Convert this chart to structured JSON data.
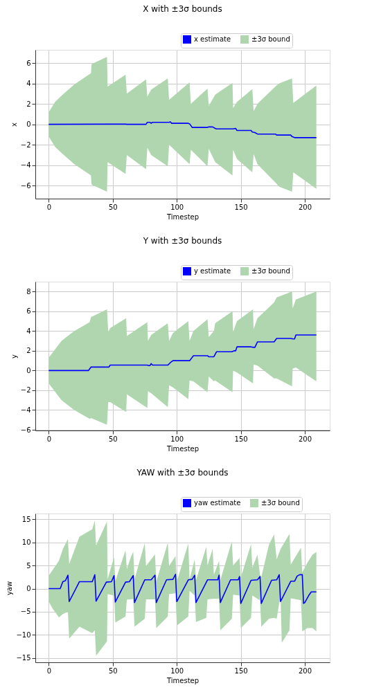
{
  "chart_data": [
    {
      "type": "line",
      "title": "X with ±3σ bounds",
      "xlabel": "Timestep",
      "ylabel": "x",
      "xlim": [
        -10.45,
        219.45
      ],
      "xticks": [
        0,
        50,
        100,
        150,
        200
      ],
      "ylim": [
        -7.27,
        7.29
      ],
      "yticks": [
        {
          "value": -6,
          "label": "−6"
        },
        {
          "value": -4,
          "label": "−4"
        },
        {
          "value": -2,
          "label": "−2"
        },
        0,
        2,
        4,
        6
      ],
      "grid": true,
      "legend": "top right",
      "series": [
        {
          "name": "x estimate",
          "type": "line",
          "color": "#0000ff",
          "x": [
            0,
            47,
            60,
            61,
            76,
            77,
            79,
            80,
            81,
            94,
            95,
            96,
            109,
            110,
            112,
            124,
            125,
            128,
            130,
            131,
            144,
            146,
            147,
            158,
            159,
            161,
            163,
            177,
            178,
            189,
            190,
            192,
            209
          ],
          "values": [
            0,
            0.02,
            0.02,
            0,
            0,
            0.2,
            0.2,
            0.1,
            0.2,
            0.2,
            0.25,
            0.1,
            0.1,
            0.05,
            -0.3,
            -0.3,
            -0.25,
            -0.25,
            -0.4,
            -0.45,
            -0.45,
            -0.4,
            -0.6,
            -0.6,
            -0.75,
            -0.8,
            -0.95,
            -0.95,
            -1.05,
            -1.05,
            -1.2,
            -1.3,
            -1.3
          ]
        },
        {
          "name": "±3σ bound",
          "type": "area",
          "color": "#b0d6b0",
          "x": [
            0,
            5,
            10,
            20,
            33,
            33.5,
            45.5,
            46,
            60,
            61,
            76,
            77,
            80,
            93,
            94,
            110,
            111,
            124,
            125,
            130,
            143.5,
            144,
            147,
            159,
            160,
            163,
            177,
            180,
            190,
            191,
            209
          ],
          "values": [
            null,
            null,
            null,
            null,
            null,
            null,
            null,
            null,
            null,
            null,
            null,
            null,
            null,
            null,
            null,
            null,
            null,
            null,
            null,
            null,
            null,
            null,
            null,
            null,
            null,
            null,
            null,
            null,
            null,
            null,
            null
          ],
          "upper": [
            1.2,
            2.2,
            2.8,
            3.9,
            5.0,
            5.9,
            6.6,
            3.7,
            4.85,
            3.0,
            4.4,
            2.7,
            3.4,
            4.5,
            2.4,
            4.1,
            2.0,
            3.5,
            1.8,
            2.9,
            4.05,
            1.6,
            2.2,
            3.45,
            1.3,
            2.0,
            3.7,
            4.0,
            4.5,
            2.1,
            3.8
          ],
          "lower": [
            -1.2,
            -2.2,
            -2.8,
            -3.9,
            -5.0,
            -5.9,
            -6.6,
            -3.7,
            -4.85,
            -3.0,
            -4.4,
            -2.3,
            -3.0,
            -4.1,
            -2.0,
            -3.9,
            -2.5,
            -4.1,
            -2.4,
            -3.7,
            -5.0,
            -2.5,
            -3.4,
            -4.7,
            -2.9,
            -3.9,
            -5.7,
            -6.1,
            -6.6,
            -4.7,
            -6.3
          ]
        }
      ]
    },
    {
      "type": "line",
      "title": "Y with ±3σ bounds",
      "xlabel": "Timestep",
      "ylabel": "y",
      "xlim": [
        -10.45,
        219.45
      ],
      "xticks": [
        0,
        50,
        100,
        150,
        200
      ],
      "ylim": [
        -6.07,
        9.0
      ],
      "yticks": [
        {
          "value": -6,
          "label": "−6"
        },
        {
          "value": -4,
          "label": "−4"
        },
        {
          "value": -2,
          "label": "−2"
        },
        0,
        2,
        4,
        6,
        8
      ],
      "grid": true,
      "legend": "top right",
      "series": [
        {
          "name": "y estimate",
          "type": "line",
          "color": "#0000ff",
          "x": [
            0,
            31,
            33,
            47,
            48,
            77,
            78,
            79,
            80,
            81,
            93,
            95,
            97,
            110,
            113,
            124,
            125,
            129,
            131,
            143,
            145,
            146,
            147,
            158,
            160,
            161,
            163,
            176,
            178,
            189,
            191,
            192,
            193,
            209
          ],
          "values": [
            0,
            0,
            0.35,
            0.35,
            0.55,
            0.55,
            0.5,
            0.5,
            0.7,
            0.55,
            0.55,
            0.8,
            1.0,
            1.0,
            1.5,
            1.5,
            1.4,
            1.4,
            1.9,
            1.9,
            2.0,
            2.0,
            2.4,
            2.4,
            2.35,
            2.35,
            2.9,
            2.9,
            3.25,
            3.25,
            3.2,
            3.2,
            3.6,
            3.6
          ]
        },
        {
          "name": "±3σ bound",
          "type": "area",
          "color": "#b0d6b0",
          "x": [
            0,
            10,
            20,
            32,
            33,
            45.5,
            46.5,
            48,
            60.5,
            61,
            77,
            77.5,
            80,
            93,
            94,
            97,
            109,
            110,
            113,
            124,
            125,
            129,
            130,
            143.5,
            144,
            147,
            159.5,
            160,
            163,
            176,
            178,
            190,
            190.5,
            193,
            209
          ],
          "values": [
            null,
            null,
            null,
            null,
            null,
            null,
            null,
            null,
            null,
            null,
            null,
            null,
            null,
            null,
            null,
            null,
            null,
            null,
            null,
            null,
            null,
            null,
            null,
            null,
            null,
            null,
            null,
            null,
            null,
            null,
            null,
            null,
            null,
            null,
            null
          ],
          "upper": [
            1.3,
            3.0,
            4.0,
            4.9,
            5.4,
            6.2,
            3.9,
            4.3,
            5.3,
            3.5,
            4.9,
            3.0,
            3.6,
            4.8,
            3.0,
            3.8,
            5.0,
            3.0,
            4.0,
            5.2,
            3.4,
            4.0,
            4.8,
            6.0,
            3.9,
            5.0,
            6.2,
            4.2,
            5.3,
            6.9,
            7.4,
            8.0,
            6.3,
            7.2,
            8.0
          ],
          "lower": [
            -1.3,
            -3.0,
            -4.0,
            -4.9,
            -4.8,
            -5.5,
            -3.2,
            -3.2,
            -4.2,
            -2.4,
            -3.8,
            -2.1,
            -2.3,
            -3.7,
            -1.5,
            -1.7,
            -2.9,
            -1.0,
            -1.1,
            -2.2,
            -0.6,
            -1.1,
            -1.0,
            -2.2,
            0.0,
            -0.2,
            -1.3,
            0.6,
            0.5,
            -0.8,
            -0.8,
            -1.6,
            0.2,
            0.3,
            -1.1
          ]
        }
      ]
    },
    {
      "type": "line",
      "title": "YAW with ±3σ bounds",
      "xlabel": "Timestep",
      "ylabel": "yaw",
      "xlim": [
        -10.45,
        219.45
      ],
      "xticks": [
        0,
        50,
        100,
        150,
        200
      ],
      "ylim": [
        -15.9,
        16.2
      ],
      "yticks": [
        {
          "value": -15,
          "label": "−15"
        },
        {
          "value": -10,
          "label": "−10"
        },
        {
          "value": -5,
          "label": "−5"
        },
        0,
        5,
        10,
        15
      ],
      "grid": true,
      "legend": "top right",
      "series": [
        {
          "name": "yaw estimate",
          "type": "line",
          "color": "#0000ff",
          "x": [
            0,
            9,
            11,
            13,
            15,
            16,
            24,
            34,
            36,
            37,
            45,
            49,
            51,
            52,
            60,
            63,
            66,
            67,
            75,
            80,
            83,
            84,
            92,
            97,
            99,
            100,
            109,
            112,
            114,
            115,
            124,
            132,
            133,
            134,
            142,
            148,
            149,
            150,
            158,
            163,
            165,
            166,
            174,
            178,
            180,
            181,
            189,
            192,
            194,
            196,
            198,
            199,
            200,
            203,
            205,
            209
          ],
          "values": [
            0,
            0,
            1.5,
            1.7,
            2.9,
            -2.8,
            1.5,
            1.5,
            3.0,
            -2.7,
            1.4,
            1.5,
            2.8,
            -2.9,
            1.4,
            1.5,
            2.8,
            -3.0,
            1.9,
            1.9,
            2.9,
            -3.0,
            1.9,
            2.0,
            3.1,
            -2.8,
            1.9,
            2.0,
            2.9,
            -3.0,
            1.9,
            1.9,
            2.9,
            -3.0,
            1.9,
            1.9,
            2.6,
            -3.2,
            1.8,
            1.9,
            2.6,
            -3.2,
            1.8,
            1.9,
            3.0,
            -2.8,
            1.6,
            1.6,
            2.7,
            3.0,
            3.0,
            -3.2,
            -3.0,
            -1.5,
            -0.7,
            -0.7
          ]
        },
        {
          "name": "±3σ bound",
          "type": "area",
          "color": "#b0d6b0",
          "x": [
            0,
            3,
            8,
            11,
            15,
            16,
            24,
            34,
            36,
            37,
            45.5,
            46,
            51,
            52,
            60,
            61,
            64,
            66,
            67,
            75,
            76,
            83,
            84,
            93,
            94,
            99,
            100,
            109,
            110,
            114,
            115,
            123,
            124,
            128,
            129,
            133,
            134,
            143,
            144,
            149,
            150,
            158,
            159,
            163,
            165,
            166,
            172,
            176,
            178,
            181,
            182,
            188,
            189,
            197,
            198,
            202,
            206,
            209
          ],
          "values": [
            null,
            null,
            null,
            null,
            null,
            null,
            null,
            null,
            null,
            null,
            null,
            null,
            null,
            null,
            null,
            null,
            null,
            null,
            null,
            null,
            null,
            null,
            null,
            null,
            null,
            null,
            null,
            null,
            null,
            null,
            null,
            null,
            null,
            null,
            null,
            null,
            null,
            null,
            null,
            null,
            null,
            null,
            null,
            null,
            null,
            null,
            null,
            null,
            null,
            null,
            null,
            null,
            null,
            null,
            null,
            null,
            null,
            null
          ],
          "upper": [
            2.8,
            4.0,
            6.0,
            8.5,
            10.7,
            5.3,
            11.2,
            12.8,
            14.7,
            9.3,
            14.5,
            2.0,
            6.8,
            1.6,
            8.3,
            4.2,
            6.7,
            8.0,
            2.0,
            9.8,
            4.9,
            7.4,
            1.5,
            9.9,
            4.9,
            7.0,
            1.5,
            9.7,
            2.0,
            6.3,
            1.8,
            9.0,
            5.0,
            8.6,
            3.0,
            6.0,
            1.8,
            10.2,
            5.0,
            6.6,
            2.4,
            9.6,
            4.5,
            7.3,
            3.0,
            2.5,
            9.5,
            11.7,
            6.3,
            8.5,
            9.0,
            11.8,
            5.2,
            8.8,
            3.5,
            5.6,
            7.3,
            7.9
          ],
          "lower": [
            -2.8,
            -4.3,
            -6.2,
            -5.5,
            -5.0,
            -10.8,
            -8.2,
            -9.6,
            -9.0,
            -14.5,
            -11.4,
            -1.2,
            -1.5,
            -7.3,
            -6.0,
            -2.4,
            -2.3,
            -2.2,
            -8.2,
            -6.5,
            -2.3,
            -2.3,
            -8.5,
            -6.0,
            -1.2,
            -1.0,
            -8.0,
            -6.0,
            -0.5,
            -1.5,
            -7.2,
            -6.3,
            -2.3,
            -2.2,
            -2.2,
            -2.2,
            -9.0,
            -6.5,
            -1.3,
            -1.5,
            -8.5,
            -6.3,
            -1.5,
            -2.2,
            -2.5,
            -8.2,
            -6.5,
            -6.3,
            -6.5,
            -1.5,
            -11.7,
            -9.0,
            -2.1,
            -2.5,
            -9.2,
            -8.5,
            -8.5,
            -9.2
          ]
        }
      ]
    }
  ]
}
